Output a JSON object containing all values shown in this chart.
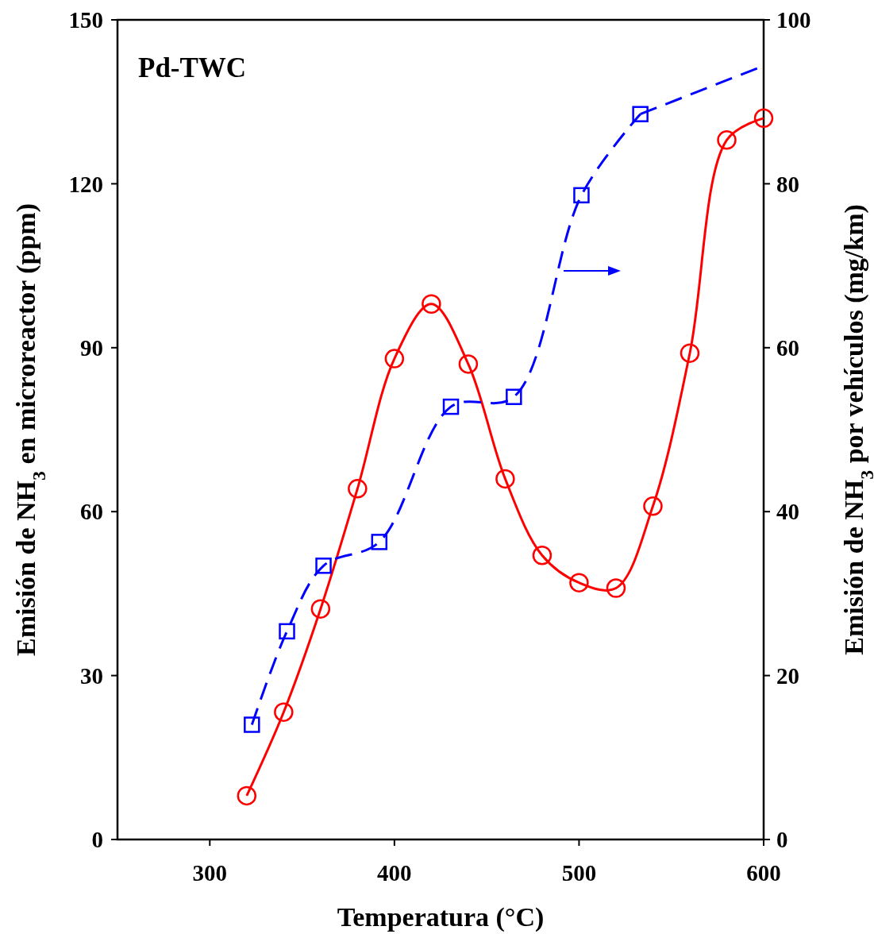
{
  "chart_data": {
    "type": "line",
    "title": "Pd-TWC",
    "xlabel": "Temperatura (°C)",
    "ylabel": "Emisión de NH$_{3}$ en microreactor (ppm)",
    "y2label": "Emisión de NH$_{3}$ por vehículos (mg/km)",
    "xlim": [
      250,
      600
    ],
    "xticks": [
      300,
      400,
      500,
      600
    ],
    "ylim": [
      0,
      150
    ],
    "yticks": [
      0,
      30,
      60,
      90,
      120,
      150
    ],
    "y2lim": [
      0,
      100
    ],
    "y2ticks": [
      0,
      20,
      40,
      60,
      80,
      100
    ],
    "grid": false,
    "series": [
      {
        "color": "#ff0000",
        "marker": "circle",
        "line_style": "solid",
        "x": [
          320,
          340,
          360,
          380,
          400,
          420,
          440,
          460,
          480,
          500,
          520,
          540,
          560,
          580,
          600
        ],
        "values": [
          8,
          23.3,
          42.2,
          64.2,
          88,
          98,
          87,
          66,
          52,
          47,
          46,
          61,
          89,
          128,
          132
        ]
      },
      {
        "color": "#0000ff",
        "marker": "square",
        "line_style": "dashed",
        "axis": "y2",
        "x": [
          322.8,
          341.8,
          361.6,
          391.8,
          430.6,
          464.7,
          501.3,
          533.2
        ],
        "values": [
          14,
          25.4,
          33.4,
          36.3,
          52.8,
          54,
          78.6,
          88.5
        ]
      },
      {
        "color": "#0000ff",
        "marker": "none",
        "line_style": "dashed",
        "axis": "y2",
        "x": [
          533.2,
          600
        ],
        "values": [
          88.5,
          94.4
        ]
      }
    ]
  }
}
